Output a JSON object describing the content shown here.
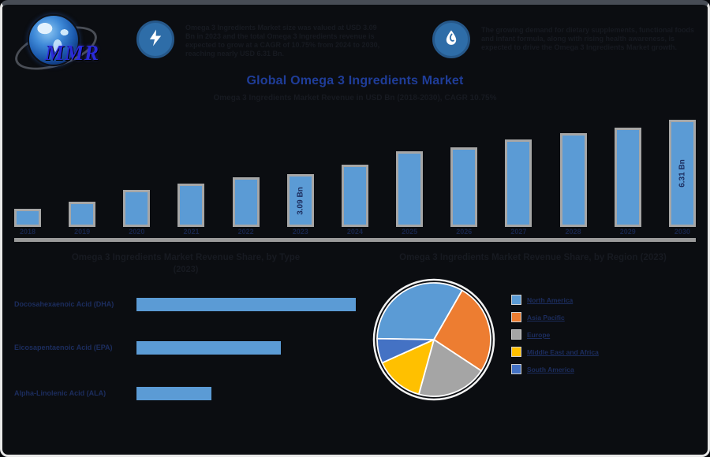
{
  "logo": {
    "text": "MMR"
  },
  "header": {
    "block1": {
      "icon": "lightning-icon",
      "text": "Omega 3 Ingredients Market size was valued at USD 3.09 Bn in 2023 and the total Omega 3 Ingredients revenue is expected to grow at a CAGR of 10.75% from 2024 to 2030, reaching nearly USD 6.31 Bn."
    },
    "block2": {
      "icon": "droplet-icon",
      "text": "The growing demand for dietary supplements, functional foods and infant formula, along with rising health awareness, is expected to drive the Omega 3 Ingredients Market growth."
    }
  },
  "title": "Global Omega 3 Ingredients Market",
  "subtitle": "Omega 3 Ingredients Market Revenue in USD Bn (2018-2030), CAGR 10.75%",
  "left_section": {
    "heading_line1": "Omega 3 Ingredients Market Revenue Share, by Type",
    "heading_line2": "(2023)"
  },
  "right_section": {
    "heading": "Omega 3 Ingredients Market Revenue Share, by Region (2023)"
  },
  "colors": {
    "background": "#0b0d11",
    "frame_border": "#e8e8e8",
    "title_blue": "#1f3d99",
    "navy_label": "#1c2d5e",
    "dark_text": "#171a21",
    "bar_fill": "#5b9bd5",
    "bar_border": "#a6a6a6",
    "axis_gray": "#9a9a9a",
    "badge_blue": "#2e6da8",
    "logo_blue": "#2a2ad8"
  },
  "chart_data": [
    {
      "type": "bar",
      "title": "Global Omega 3 Ingredients Market",
      "ylabel": "Revenue (USD Bn)",
      "categories": [
        "2018",
        "2019",
        "2020",
        "2021",
        "2022",
        "2023",
        "2024",
        "2025",
        "2026",
        "2027",
        "2028",
        "2029",
        "2030"
      ],
      "values": [
        1.05,
        1.5,
        2.2,
        2.55,
        2.9,
        3.09,
        3.65,
        4.45,
        4.7,
        5.15,
        5.5,
        5.85,
        6.31
      ],
      "unit": "USD Bn",
      "ylim": [
        0,
        6.31
      ],
      "grid": false,
      "bar_labels": {
        "2023": "3.09 Bn",
        "2030": "6.31 Bn"
      }
    },
    {
      "type": "bar",
      "orientation": "horizontal",
      "title": "Omega 3 Ingredients Market Revenue Share, by Type (2023)",
      "categories": [
        "Docosahexaenoic Acid (DHA)",
        "Eicosapentaenoic Acid (EPA)",
        "Alpha-Linolenic Acid (ALA)"
      ],
      "values": [
        50,
        33,
        17
      ],
      "unit": "%",
      "grid": false
    },
    {
      "type": "pie",
      "title": "Omega 3 Ingredients Market Revenue Share, by Region (2023)",
      "categories": [
        "North America",
        "Asia Pacific",
        "Europe",
        "Middle East and Africa",
        "South America"
      ],
      "values": [
        33,
        26,
        20,
        14,
        7
      ],
      "colors": [
        "#5b9bd5",
        "#ed7d31",
        "#a5a5a5",
        "#ffc000",
        "#4472c4"
      ],
      "start_angle": 271,
      "legend_position": "right"
    }
  ]
}
